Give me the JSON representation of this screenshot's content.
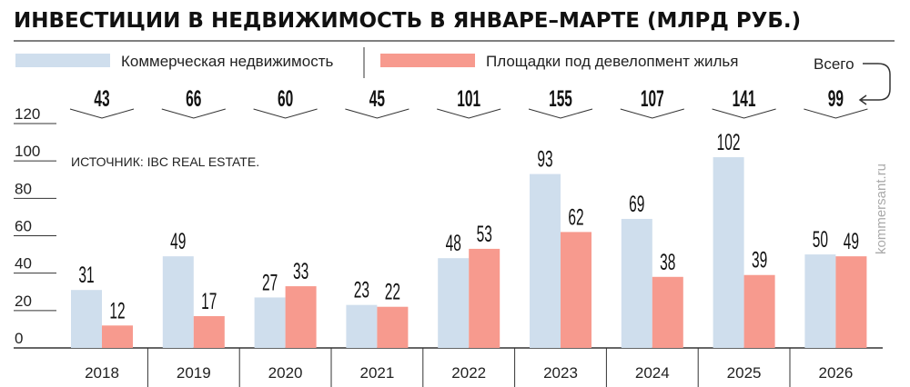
{
  "chart_data": {
    "type": "bar",
    "title": "ИНВЕСТИЦИИ В НЕДВИЖИМОСТЬ В ЯНВАРЕ–МАРТЕ (МЛРД РУБ.)",
    "source": "ИСТОЧНИК: IBC REAL ESTATE.",
    "watermark": "kommersant.ru",
    "categories": [
      "2018",
      "2019",
      "2020",
      "2021",
      "2022",
      "2023",
      "2024",
      "2025",
      "2026"
    ],
    "series": [
      {
        "name": "Коммерческая недвижимость",
        "color": "#cfdeed",
        "values": [
          31,
          49,
          27,
          23,
          48,
          93,
          69,
          102,
          50
        ]
      },
      {
        "name": "Площадки под девелопмент жилья",
        "color": "#f79a8e",
        "values": [
          12,
          17,
          33,
          22,
          53,
          62,
          38,
          39,
          49
        ]
      }
    ],
    "totals_label": "Всего",
    "totals": [
      43,
      66,
      60,
      45,
      101,
      155,
      107,
      141,
      99
    ],
    "yticks": [
      0,
      20,
      40,
      60,
      80,
      100,
      120
    ],
    "ylim": [
      0,
      120
    ],
    "grid": false
  }
}
